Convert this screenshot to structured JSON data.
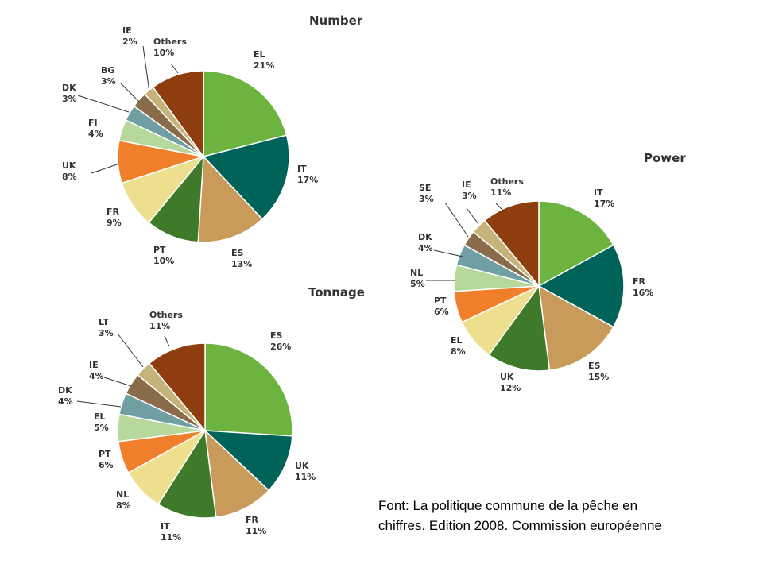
{
  "colors": {
    "palette": {
      "green": "#6cb33f",
      "teal": "#00635a",
      "tan": "#c89b5b",
      "darkgreen": "#3f7a2b",
      "paleyellow": "#eedf8f",
      "orange": "#f07f2c",
      "lightgreen": "#b6d89a",
      "greyblue": "#6f9ea3",
      "brown": "#8a6b4a",
      "khaki": "#c6b37a",
      "rust": "#8e3d0e"
    },
    "text": "#333333"
  },
  "chart_data": [
    {
      "type": "pie",
      "title": "Number",
      "slices": [
        {
          "label": "EL",
          "value": 21,
          "value_label": "21%",
          "color": "green"
        },
        {
          "label": "IT",
          "value": 17,
          "value_label": "17%",
          "color": "teal"
        },
        {
          "label": "ES",
          "value": 13,
          "value_label": "13%",
          "color": "tan"
        },
        {
          "label": "PT",
          "value": 10,
          "value_label": "10%",
          "color": "darkgreen"
        },
        {
          "label": "FR",
          "value": 9,
          "value_label": "9%",
          "color": "paleyellow"
        },
        {
          "label": "UK",
          "value": 8,
          "value_label": "8%",
          "color": "orange"
        },
        {
          "label": "FI",
          "value": 4,
          "value_label": "4%",
          "color": "lightgreen"
        },
        {
          "label": "DK",
          "value": 3,
          "value_label": "3%",
          "color": "greyblue"
        },
        {
          "label": "BG",
          "value": 3,
          "value_label": "3%",
          "color": "brown"
        },
        {
          "label": "IE",
          "value": 2,
          "value_label": "2%",
          "color": "khaki"
        },
        {
          "label": "Others",
          "value": 10,
          "value_label": "10%",
          "color": "rust"
        }
      ]
    },
    {
      "type": "pie",
      "title": "Tonnage",
      "slices": [
        {
          "label": "ES",
          "value": 26,
          "value_label": "26%",
          "color": "green"
        },
        {
          "label": "UK",
          "value": 11,
          "value_label": "11%",
          "color": "teal"
        },
        {
          "label": "FR",
          "value": 11,
          "value_label": "11%",
          "color": "tan"
        },
        {
          "label": "IT",
          "value": 11,
          "value_label": "11%",
          "color": "darkgreen"
        },
        {
          "label": "NL",
          "value": 8,
          "value_label": "8%",
          "color": "paleyellow"
        },
        {
          "label": "PT",
          "value": 6,
          "value_label": "6%",
          "color": "orange"
        },
        {
          "label": "EL",
          "value": 5,
          "value_label": "5%",
          "color": "lightgreen"
        },
        {
          "label": "DK",
          "value": 4,
          "value_label": "4%",
          "color": "greyblue"
        },
        {
          "label": "IE",
          "value": 4,
          "value_label": "4%",
          "color": "brown"
        },
        {
          "label": "LT",
          "value": 3,
          "value_label": "3%",
          "color": "khaki"
        },
        {
          "label": "Others",
          "value": 11,
          "value_label": "11%",
          "color": "rust"
        }
      ]
    },
    {
      "type": "pie",
      "title": "Power",
      "slices": [
        {
          "label": "IT",
          "value": 17,
          "value_label": "17%",
          "color": "green"
        },
        {
          "label": "FR",
          "value": 16,
          "value_label": "16%",
          "color": "teal"
        },
        {
          "label": "ES",
          "value": 15,
          "value_label": "15%",
          "color": "tan"
        },
        {
          "label": "UK",
          "value": 12,
          "value_label": "12%",
          "color": "darkgreen"
        },
        {
          "label": "EL",
          "value": 8,
          "value_label": "8%",
          "color": "paleyellow"
        },
        {
          "label": "PT",
          "value": 6,
          "value_label": "6%",
          "color": "orange"
        },
        {
          "label": "NL",
          "value": 5,
          "value_label": "5%",
          "color": "lightgreen"
        },
        {
          "label": "DK",
          "value": 4,
          "value_label": "4%",
          "color": "greyblue"
        },
        {
          "label": "SE",
          "value": 3,
          "value_label": "3%",
          "color": "brown"
        },
        {
          "label": "IE",
          "value": 3,
          "value_label": "3%",
          "color": "khaki"
        },
        {
          "label": "Others",
          "value": 11,
          "value_label": "11%",
          "color": "rust"
        }
      ]
    }
  ],
  "source_note": {
    "line1": "Font: La politique commune de la pêche en",
    "line2": "chiffres. Edition 2008. Commission européenne"
  }
}
